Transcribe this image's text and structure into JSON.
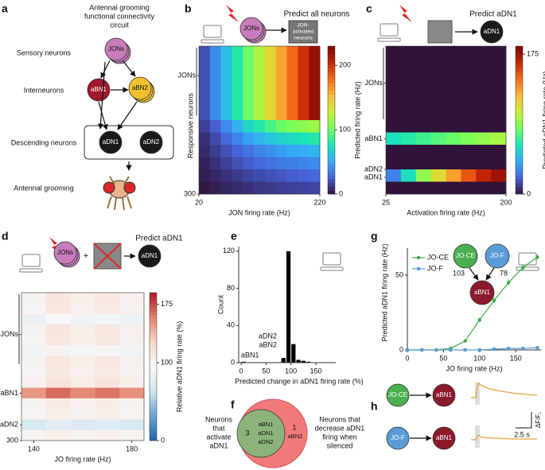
{
  "panel_labels": [
    "a",
    "b",
    "c",
    "d",
    "e",
    "f",
    "g",
    "h"
  ],
  "circuit": {
    "title_lines": [
      "Antennal grooming",
      "functional connectivity",
      "circuit"
    ],
    "levels": [
      "Sensory neurons",
      "Interneurons",
      "Descending neurons",
      "Antennal grooming"
    ],
    "nodes": [
      "JONs",
      "aBN1",
      "aBN2",
      "aDN1",
      "aDN2"
    ]
  },
  "chart_data": [
    {
      "type": "heatmap",
      "header": {
        "source": "JONs",
        "instruction": "Predict all neurons",
        "target_lines": [
          "JON-",
          "activated",
          "neurons"
        ]
      },
      "xlabel": "JON firing rate (Hz)",
      "ylabel": "Responsive neurons",
      "xlim": [
        20,
        220
      ],
      "xticks": [
        20,
        220
      ],
      "ylim": [
        0,
        300
      ],
      "yticks": [
        {
          "value": 60,
          "label": "JONs"
        },
        300
      ],
      "colormap": "turbo",
      "clim": [
        0,
        230
      ],
      "cticks": [
        0,
        100,
        200
      ],
      "colorbar_label": "Predicted firing rate (Hz)",
      "values": [
        [
          20,
          40,
          60,
          80,
          100,
          120,
          140,
          160,
          180,
          200,
          220
        ],
        [
          20,
          40,
          60,
          80,
          100,
          120,
          140,
          160,
          180,
          200,
          220
        ],
        [
          20,
          40,
          60,
          80,
          100,
          120,
          140,
          160,
          180,
          200,
          220
        ],
        [
          20,
          40,
          60,
          80,
          100,
          120,
          140,
          160,
          180,
          200,
          220
        ],
        [
          20,
          40,
          60,
          80,
          100,
          120,
          140,
          160,
          180,
          200,
          220
        ],
        [
          20,
          40,
          60,
          80,
          100,
          120,
          140,
          160,
          180,
          200,
          220
        ],
        [
          15,
          25,
          40,
          55,
          70,
          80,
          90,
          100,
          105,
          110,
          115
        ],
        [
          10,
          18,
          28,
          38,
          48,
          55,
          62,
          68,
          72,
          76,
          80
        ],
        [
          8,
          14,
          20,
          26,
          32,
          38,
          42,
          46,
          50,
          52,
          55
        ],
        [
          5,
          10,
          15,
          20,
          24,
          28,
          31,
          34,
          36,
          38,
          40
        ],
        [
          4,
          7,
          10,
          13,
          16,
          18,
          20,
          22,
          24,
          26,
          28
        ],
        [
          2,
          4,
          6,
          8,
          10,
          12,
          13,
          14,
          15,
          16,
          17
        ]
      ]
    },
    {
      "type": "heatmap",
      "header": {
        "instruction": "Predict aDN1",
        "target": "aDN1"
      },
      "xlabel": "Activation firing rate (Hz)",
      "xlim": [
        25,
        200
      ],
      "xticks": [
        25,
        200
      ],
      "ylim": [
        0,
        300
      ],
      "yticks": [
        {
          "value": 75,
          "label": "JONs"
        },
        {
          "value": 188,
          "label": "aBN1"
        },
        {
          "value": 250,
          "label": "aDN2"
        },
        {
          "value": 266,
          "label": "aDN1"
        }
      ],
      "colormap": "turbo",
      "clim": [
        0,
        185
      ],
      "cticks": [
        0,
        175
      ],
      "colorbar_label": "Predicted aDN1 firing rate (Hz)",
      "values": [
        [
          0,
          0,
          0,
          0,
          0,
          0,
          0,
          0
        ],
        [
          0,
          0,
          0,
          0,
          0,
          0,
          0,
          0
        ],
        [
          0,
          0,
          0,
          0,
          0,
          0,
          0,
          0
        ],
        [
          0,
          0,
          0,
          0,
          0,
          0,
          0,
          0
        ],
        [
          0,
          0,
          0,
          0,
          0,
          0,
          0,
          0
        ],
        [
          0,
          0,
          0,
          0,
          0,
          0,
          0,
          0
        ],
        [
          0,
          0,
          0,
          0,
          0,
          0,
          0,
          0
        ],
        [
          60,
          65,
          70,
          75,
          80,
          85,
          90,
          95
        ],
        [
          0,
          0,
          0,
          0,
          0,
          0,
          0,
          0
        ],
        [
          0,
          0,
          0,
          0,
          0,
          0,
          0,
          0
        ],
        [
          30,
          60,
          90,
          110,
          130,
          150,
          165,
          175
        ],
        [
          0,
          0,
          0,
          0,
          0,
          0,
          0,
          0
        ]
      ]
    },
    {
      "type": "heatmap",
      "header": {
        "source": "JONs",
        "plus": "+",
        "instruction": "Predict aDN1",
        "target": "aDN1"
      },
      "xlabel": "JO firing rate (Hz)",
      "xlim": [
        135,
        185
      ],
      "xticks": [
        140,
        180
      ],
      "ylim": [
        0,
        300
      ],
      "yticks": [
        {
          "value": 85,
          "label": "JONs"
        },
        {
          "value": 204,
          "label": "aBN1"
        },
        {
          "value": 268,
          "label": "aDN2"
        },
        300
      ],
      "colormap": "RdBu",
      "clim": [
        0,
        190
      ],
      "cticks": [
        0,
        100,
        175
      ],
      "colorbar_label": "Relative aDN1 firing rate (%)",
      "values": [
        [
          100,
          112,
          104,
          110,
          102
        ],
        [
          98,
          110,
          102,
          108,
          100
        ],
        [
          85,
          95,
          88,
          92,
          86
        ],
        [
          101,
          112,
          104,
          110,
          102
        ],
        [
          99,
          110,
          103,
          109,
          101
        ],
        [
          90,
          100,
          92,
          98,
          90
        ],
        [
          100,
          111,
          104,
          110,
          101
        ],
        [
          98,
          109,
          102,
          108,
          100
        ],
        [
          102,
          115,
          106,
          113,
          104
        ],
        [
          150,
          165,
          155,
          162,
          152
        ],
        [
          100,
          108,
          102,
          106,
          100
        ],
        [
          98,
          104,
          100,
          103,
          99
        ],
        [
          70,
          78,
          72,
          76,
          70
        ],
        [
          99,
          103,
          100,
          102,
          100
        ]
      ]
    },
    {
      "type": "histogram",
      "xlabel": "Predicted change in aDN1 firing rate (%)",
      "ylabel": "Count",
      "bins": [
        0,
        10,
        20,
        30,
        40,
        50,
        60,
        70,
        80,
        90,
        100,
        110,
        120,
        130,
        140,
        150,
        160,
        170,
        180,
        190
      ],
      "values": [
        1,
        0,
        0,
        0,
        0,
        0,
        0,
        0,
        5,
        120,
        20,
        3,
        2,
        1,
        0,
        0,
        0,
        0,
        0
      ],
      "color": "#000000",
      "xlim": [
        -5,
        190
      ],
      "xticks": [
        0,
        50,
        100,
        150
      ],
      "ylim": [
        0,
        125
      ],
      "yticks": [
        0,
        40,
        80,
        120
      ],
      "annotations": [
        "aBN1",
        "aDN2",
        "aBN2"
      ]
    },
    {
      "type": "line",
      "xlabel": "JO firing rate (Hz)",
      "ylabel": "Predicted aDN1 firing rate (Hz)",
      "x": [
        0,
        20,
        40,
        60,
        80,
        100,
        120,
        140,
        160,
        180
      ],
      "series": [
        {
          "name": "JO-CE",
          "color": "#3cae49",
          "values": [
            0,
            0,
            0,
            1,
            6,
            20,
            33,
            45,
            55,
            62
          ],
          "errors": [
            0,
            0,
            0,
            0.5,
            1,
            1.5,
            2,
            2,
            2,
            1.5
          ]
        },
        {
          "name": "JO-F",
          "color": "#5b9bd5",
          "values": [
            0,
            0,
            0,
            0,
            0,
            0,
            0.5,
            1,
            1,
            1.5
          ],
          "errors": [
            0,
            0,
            0,
            0,
            0,
            0,
            0.3,
            0.4,
            0.4,
            0.5
          ]
        }
      ],
      "xlim": [
        0,
        185
      ],
      "xticks": [
        0,
        50,
        100,
        150
      ],
      "ylim": [
        0,
        68
      ],
      "yticks": [
        0,
        50
      ],
      "legend": "upper left",
      "inset": {
        "nodes": [
          "JO-CE",
          "JO-F",
          "aBN1"
        ],
        "weights": [
          103,
          78
        ]
      }
    }
  ],
  "venn": {
    "left_lines": [
      "Neurons",
      "that",
      "activate",
      "aDN1"
    ],
    "right_lines": [
      "Neurons that",
      "decrease aDN1",
      "firing when",
      "silenced"
    ],
    "overlap_count": 3,
    "shared_neurons": [
      "aBN1",
      "aDN1",
      "aDN2"
    ],
    "right_only_count": 1,
    "right_neurons": [
      "aBN2"
    ]
  },
  "imaging": {
    "rows": [
      {
        "source": "JO-CE",
        "target": "aBN1"
      },
      {
        "source": "JO-F",
        "target": "aBN1"
      }
    ],
    "time_scale": "2.5 s",
    "response_scale": "ΔF/F₁"
  }
}
